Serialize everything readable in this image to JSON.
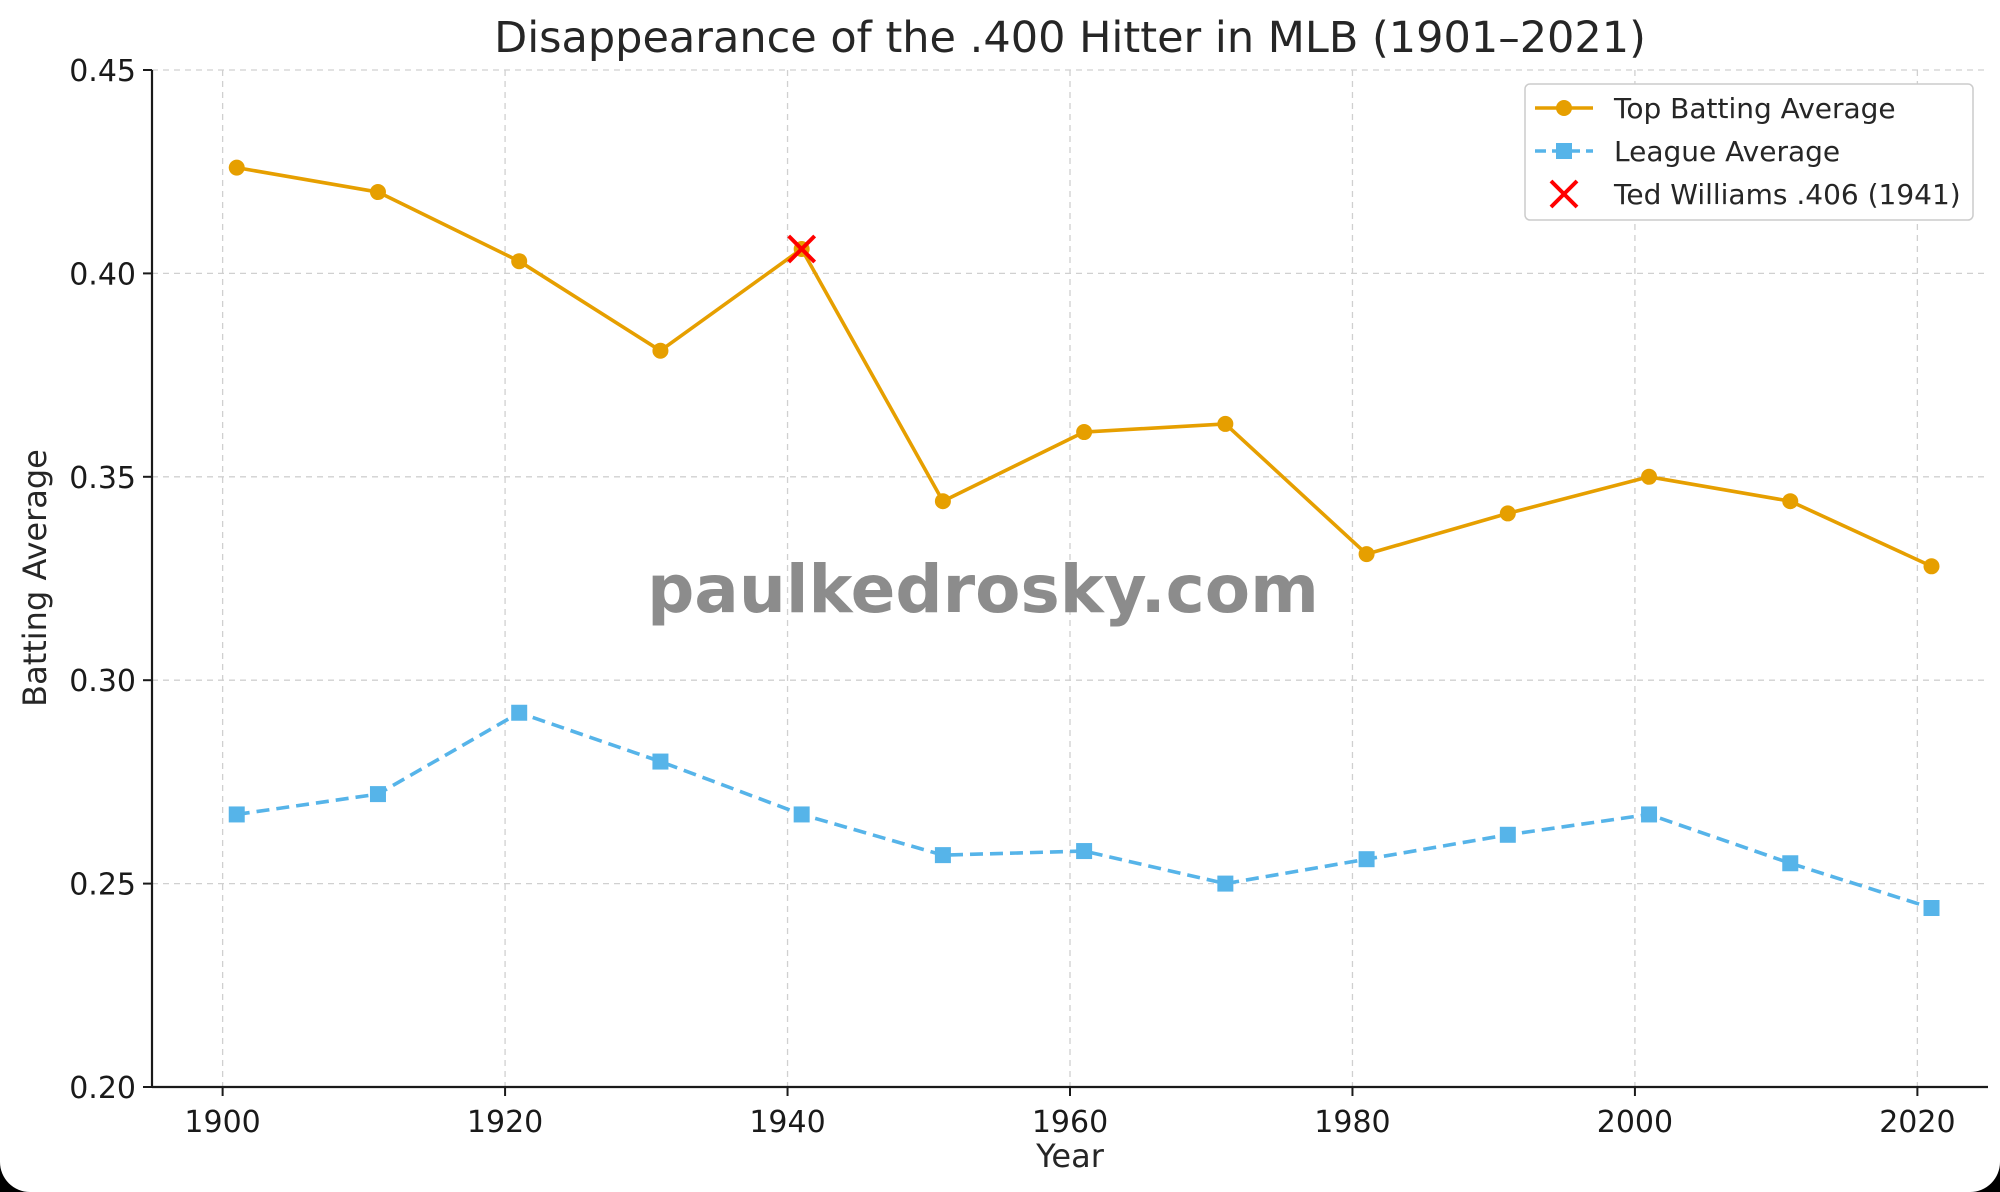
{
  "chart_data": {
    "type": "line",
    "title": "Disappearance of the .400 Hitter in MLB (1901–2021)",
    "xlabel": "Year",
    "ylabel": "Batting Average",
    "xlim": [
      1895,
      2025
    ],
    "ylim": [
      0.2,
      0.45
    ],
    "x_ticks": [
      1900,
      1920,
      1940,
      1960,
      1980,
      2000,
      2020
    ],
    "x_tick_labels": [
      "1900",
      "1920",
      "1940",
      "1960",
      "1980",
      "2000",
      "2020"
    ],
    "y_ticks": [
      0.2,
      0.25,
      0.3,
      0.35,
      0.4,
      0.45
    ],
    "y_tick_labels": [
      "0.20",
      "0.25",
      "0.30",
      "0.35",
      "0.40",
      "0.45"
    ],
    "grid": true,
    "legend_position": "top-right",
    "x": [
      1901,
      1911,
      1921,
      1931,
      1941,
      1951,
      1961,
      1971,
      1981,
      1991,
      2001,
      2011,
      2021
    ],
    "series": [
      {
        "name": "Top Batting Average",
        "color": "#e69f00",
        "line_style": "solid",
        "marker": "circle",
        "values": [
          0.426,
          0.42,
          0.403,
          0.381,
          0.406,
          0.344,
          0.361,
          0.363,
          0.331,
          0.341,
          0.35,
          0.344,
          0.328
        ]
      },
      {
        "name": "League Average",
        "color": "#56b4e9",
        "line_style": "dashed",
        "marker": "square",
        "values": [
          0.267,
          0.272,
          0.292,
          0.28,
          0.267,
          0.257,
          0.258,
          0.25,
          0.256,
          0.262,
          0.267,
          0.255,
          0.244
        ]
      }
    ],
    "highlight": {
      "name": "Ted Williams .406 (1941)",
      "color": "#ff0000",
      "marker": "x",
      "x": 1941,
      "y": 0.406
    },
    "watermark": "paulkedrosky.com"
  }
}
